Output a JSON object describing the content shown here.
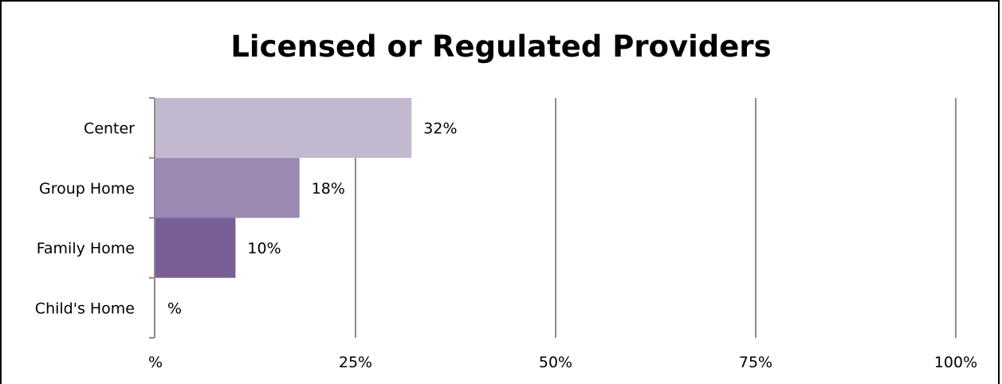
{
  "chart_data": {
    "type": "bar",
    "orientation": "horizontal",
    "title": "Licensed or Regulated Providers",
    "categories": [
      "Center",
      "Group Home",
      "Family Home",
      "Child's Home"
    ],
    "values": [
      32,
      18,
      10,
      0
    ],
    "data_labels": [
      "32%",
      "18%",
      "10%",
      "%"
    ],
    "xlim": [
      0,
      100
    ],
    "xticks": [
      0,
      25,
      50,
      75,
      100
    ],
    "xtick_labels": [
      "%",
      "25%",
      "50%",
      "75%",
      "100%"
    ],
    "xlabel": "",
    "ylabel": "",
    "grid": "vertical",
    "legend": "none",
    "colors": [
      "#c2b8d0",
      "#9c89b3",
      "#7a5e98",
      "#7a5e98"
    ],
    "gridline_color": "#8c8c8c"
  }
}
